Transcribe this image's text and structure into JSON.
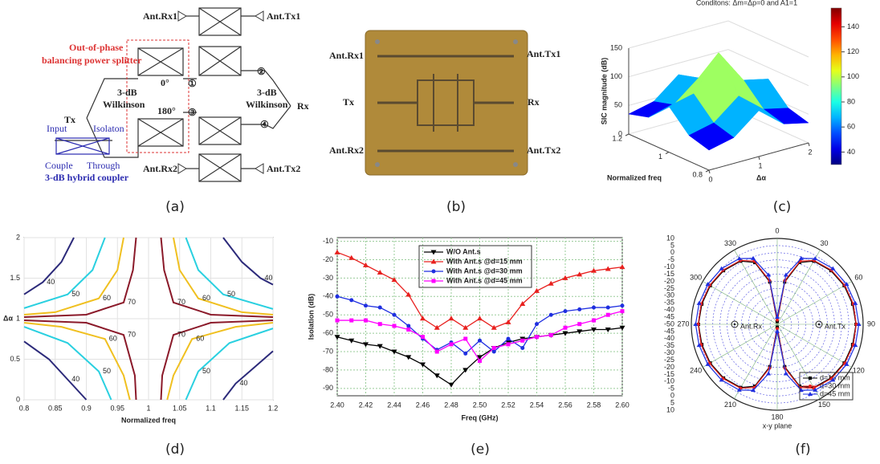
{
  "captions": [
    "(a)",
    "(b)",
    "(c)",
    "(d)",
    "(e)",
    "(f)"
  ],
  "diagram": {
    "ant_rx1": "Ant.Rx1",
    "ant_tx1": "Ant.Tx1",
    "splitter_line1": "Out-of-phase",
    "splitter_line2": "balancing power splitter",
    "wilk_left_1": "3-dB",
    "wilk_left_2": "Wilkinson",
    "wilk_right_1": "3-dB",
    "wilk_right_2": "Wilkinson",
    "phase_0": "0°",
    "phase_180": "180°",
    "port_1": "①",
    "port_2": "②",
    "port_3": "③",
    "port_4": "④",
    "tx": "Tx",
    "rx": "Rx",
    "legend_input": "Input",
    "legend_isolation": "Isolaton",
    "legend_couple": "Couple",
    "legend_through": "Through",
    "legend_title": "3-dB hybrid coupler",
    "ant_rx2": "Ant.Rx2",
    "ant_tx2": "Ant.Tx2"
  },
  "photo": {
    "ant_rx1": "Ant.Rx1",
    "ant_tx1": "Ant.Tx1",
    "tx": "Tx",
    "rx": "Rx",
    "ant_rx2": "Ant.Rx2",
    "ant_tx2": "Ant.Tx2"
  },
  "chart_data": [
    {
      "type": "surface",
      "title": "Conditons: Δm=Δp=0 and A1=1",
      "xlabel": "Δα",
      "ylabel": "Normalized freq",
      "zlabel": "SIC magnitude (dB)",
      "x": [
        0,
        0.5,
        1,
        1.5,
        2
      ],
      "y": [
        0.8,
        0.9,
        1,
        1.1,
        1.2
      ],
      "z": [
        [
          35,
          45,
          80,
          45,
          35
        ],
        [
          45,
          55,
          90,
          55,
          45
        ],
        [
          80,
          90,
          150,
          90,
          80
        ],
        [
          45,
          55,
          90,
          55,
          45
        ],
        [
          35,
          45,
          80,
          45,
          35
        ]
      ],
      "xlim": [
        0,
        2
      ],
      "xticks": [
        0,
        1,
        2
      ],
      "ylim": [
        0.8,
        1.2
      ],
      "yticks": [
        0.8,
        1,
        1.2
      ],
      "zlim": [
        0,
        150
      ],
      "zticks": [
        0,
        50,
        100,
        150
      ],
      "clim": [
        30,
        155
      ],
      "cticks": [
        40,
        60,
        80,
        100,
        120,
        140
      ]
    },
    {
      "type": "contour",
      "xlabel": "Normalized freq",
      "ylabel": "Δα",
      "xlim": [
        0.8,
        1.2
      ],
      "xticks": [
        0.8,
        0.85,
        0.9,
        0.95,
        1,
        1.05,
        1.1,
        1.15,
        1.2
      ],
      "ylim": [
        0,
        2
      ],
      "yticks": [
        0,
        0.5,
        1,
        1.5,
        2
      ],
      "grid": true,
      "lines": [
        {
          "level": 40,
          "color": "#2c2a7a",
          "x": [
            0.88,
            0.86,
            0.83,
            0.8,
            null,
            0.8,
            0.84,
            0.87,
            0.9,
            null,
            1.12,
            1.15,
            1.18,
            1.2,
            null,
            1.2,
            1.17,
            1.14,
            1.12
          ],
          "y": [
            2,
            1.7,
            1.45,
            1.3,
            null,
            0.72,
            0.5,
            0.25,
            0,
            null,
            2,
            1.7,
            1.5,
            1.42,
            null,
            0.6,
            0.4,
            0.2,
            0
          ]
        },
        {
          "level": 50,
          "color": "#2ad0e0",
          "x": [
            0.93,
            0.91,
            0.87,
            0.8,
            null,
            0.8,
            0.87,
            0.92,
            0.94,
            null,
            1.06,
            1.08,
            1.12,
            1.2,
            null,
            1.2,
            1.13,
            1.08,
            1.06
          ],
          "y": [
            2,
            1.6,
            1.3,
            1.13,
            null,
            0.9,
            0.7,
            0.35,
            0,
            null,
            2,
            1.6,
            1.3,
            1.12,
            null,
            0.88,
            0.7,
            0.35,
            0
          ]
        },
        {
          "level": 60,
          "color": "#f0c020",
          "x": [
            0.96,
            0.95,
            0.92,
            0.85,
            0.8,
            null,
            0.8,
            0.86,
            0.93,
            0.96,
            0.97,
            null,
            1.04,
            1.05,
            1.08,
            1.15,
            1.2,
            null,
            1.2,
            1.14,
            1.07,
            1.04,
            1.03
          ],
          "y": [
            2,
            1.6,
            1.25,
            1.08,
            1.05,
            null,
            0.95,
            0.9,
            0.75,
            0.3,
            0,
            null,
            2,
            1.6,
            1.25,
            1.08,
            1.05,
            null,
            0.95,
            0.9,
            0.75,
            0.3,
            0
          ]
        },
        {
          "level": 70,
          "color": "#8b1a2a",
          "x": [
            0.98,
            0.975,
            0.96,
            0.9,
            0.8,
            null,
            0.8,
            0.9,
            0.96,
            0.978,
            0.98,
            null,
            1.02,
            1.025,
            1.04,
            1.1,
            1.2,
            null,
            1.2,
            1.1,
            1.04,
            1.022,
            1.02
          ],
          "y": [
            2,
            1.6,
            1.2,
            1.05,
            1.02,
            null,
            0.98,
            0.95,
            0.8,
            0.3,
            0,
            null,
            2,
            1.6,
            1.2,
            1.05,
            1.02,
            null,
            0.98,
            0.95,
            0.8,
            0.3,
            0
          ]
        }
      ]
    },
    {
      "type": "line",
      "xlabel": "Freq (GHz)",
      "ylabel": "Isolation (dB)",
      "x": [
        2.4,
        2.41,
        2.42,
        2.43,
        2.44,
        2.45,
        2.46,
        2.47,
        2.48,
        2.49,
        2.5,
        2.51,
        2.52,
        2.53,
        2.54,
        2.55,
        2.56,
        2.57,
        2.58,
        2.59,
        2.6
      ],
      "xlim": [
        2.4,
        2.6
      ],
      "xticks": [
        {
          "value": 2.4,
          "label": "2.40"
        },
        {
          "value": 2.42,
          "label": "2.42"
        },
        {
          "value": 2.44,
          "label": "2.44"
        },
        {
          "value": 2.46,
          "label": "2.46"
        },
        {
          "value": 2.48,
          "label": "2.48"
        },
        {
          "value": 2.5,
          "label": "2.50"
        },
        {
          "value": 2.52,
          "label": "2.52"
        },
        {
          "value": 2.54,
          "label": "2.54"
        },
        {
          "value": 2.56,
          "label": "2.56"
        },
        {
          "value": 2.58,
          "label": "2.58"
        },
        {
          "value": 2.6,
          "label": "2.60"
        }
      ],
      "ylim": [
        -94,
        -8
      ],
      "yticks": [
        -90,
        -80,
        -70,
        -60,
        -50,
        -40,
        -30,
        -20,
        -10
      ],
      "grid": true,
      "series": [
        {
          "name": "W/O Ant.s",
          "color": "#000000",
          "marker": "triangle-down",
          "values": [
            -62,
            -64,
            -66,
            -67,
            -70,
            -73,
            -77,
            -83,
            -88,
            -80,
            -73,
            -68,
            -65,
            -63,
            -62,
            -61,
            -60,
            -59,
            -58,
            -58,
            -57
          ]
        },
        {
          "name": "With Ant.s @d=15 mm",
          "color": "#e8201e",
          "marker": "triangle-up",
          "values": [
            -16,
            -19,
            -23,
            -27,
            -31,
            -39,
            -52,
            -57,
            -52,
            -57,
            -52,
            -57,
            -54,
            -44,
            -37,
            -33,
            -30,
            -28,
            -26,
            -25,
            -24
          ]
        },
        {
          "name": "With Ant.s @d=30 mm",
          "color": "#1f2fe0",
          "marker": "circle",
          "values": [
            -40,
            -42,
            -45,
            -46,
            -50,
            -56,
            -63,
            -69,
            -65,
            -71,
            -64,
            -70,
            -63,
            -68,
            -55,
            -50,
            -48,
            -47,
            -46,
            -46,
            -45
          ]
        },
        {
          "name": "With Ant.s @d=45 mm",
          "color": "#ff00ff",
          "marker": "square",
          "values": [
            -53,
            -53,
            -53,
            -55,
            -56,
            -58,
            -62,
            -70,
            -66,
            -63,
            -75,
            -68,
            -66,
            -64,
            -62,
            -61,
            -57,
            -55,
            -53,
            -50,
            -48
          ]
        }
      ]
    },
    {
      "type": "polar",
      "xlabel": "x-y plane",
      "theta": [
        0,
        10,
        20,
        30,
        45,
        60,
        75,
        90,
        105,
        120,
        135,
        150,
        160,
        170,
        180,
        190,
        200,
        210,
        225,
        240,
        255,
        270,
        285,
        300,
        315,
        330,
        340,
        350
      ],
      "rlim": [
        -50,
        10
      ],
      "rticks": [
        -50,
        -45,
        -40,
        -35,
        -30,
        -25,
        -20,
        -15,
        -10,
        -5,
        0,
        5,
        10
      ],
      "thetaticks": [
        0,
        30,
        60,
        90,
        120,
        150,
        180,
        210,
        240,
        270,
        300,
        330
      ],
      "annotations": [
        "Ant.Rx",
        "Ant.Tx"
      ],
      "series": [
        {
          "name": "d=15 mm",
          "color": "#000000",
          "marker": "square",
          "values": [
            -48,
            -20,
            -4,
            1,
            3,
            4,
            4.5,
            5,
            4.5,
            4,
            3,
            1,
            -4,
            -20,
            -48,
            -20,
            -4,
            1,
            3,
            4,
            4.5,
            5,
            4.5,
            4,
            3,
            1,
            -4,
            -20
          ]
        },
        {
          "name": "d=30 mm",
          "color": "#e8201e",
          "marker": "circle",
          "values": [
            -47,
            -19,
            -3,
            1.5,
            3.5,
            4.5,
            5,
            5.2,
            5,
            4.5,
            3.5,
            1.5,
            -3,
            -19,
            -47,
            -19,
            -3,
            1.5,
            3.5,
            4.5,
            5,
            5.2,
            5,
            4.5,
            3.5,
            1.5,
            -3,
            -19
          ]
        },
        {
          "name": "d=45 mm",
          "color": "#1f2fe0",
          "marker": "triangle-up",
          "values": [
            -45,
            -15,
            -1,
            3,
            5,
            6,
            6.5,
            7,
            6.5,
            6,
            5,
            3,
            -1,
            -15,
            -45,
            -15,
            -1,
            3,
            5,
            6,
            6.5,
            7,
            6.5,
            6,
            5,
            3,
            -1,
            -15
          ]
        }
      ]
    }
  ]
}
